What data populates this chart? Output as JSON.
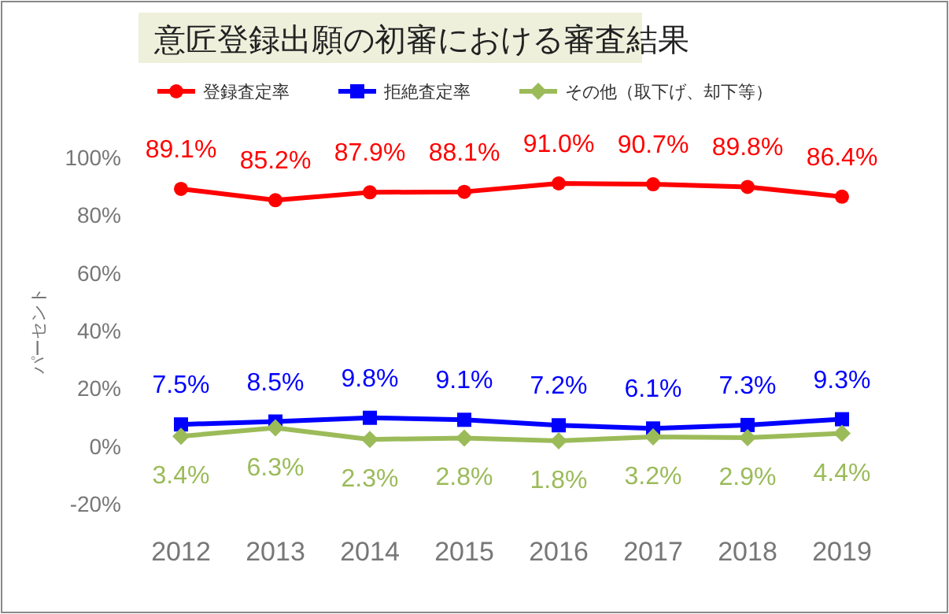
{
  "chart_data": {
    "type": "line",
    "title": "意匠登録出願の初審における審査結果",
    "ylabel": "パーセント",
    "categories": [
      "2012",
      "2013",
      "2014",
      "2015",
      "2016",
      "2017",
      "2018",
      "2019"
    ],
    "series": [
      {
        "name": "登録査定率",
        "color": "#ff0000",
        "marker": "circle",
        "values": [
          89.1,
          85.2,
          87.9,
          88.1,
          91.0,
          90.7,
          89.8,
          86.4
        ],
        "value_labels": [
          "89.1%",
          "85.2%",
          "87.9%",
          "88.1%",
          "91.0%",
          "90.7%",
          "89.8%",
          "86.4%"
        ]
      },
      {
        "name": "拒絶査定率",
        "color": "#0000ff",
        "marker": "square",
        "values": [
          7.5,
          8.5,
          9.8,
          9.1,
          7.2,
          6.1,
          7.3,
          9.3
        ],
        "value_labels": [
          "7.5%",
          "8.5%",
          "9.8%",
          "9.1%",
          "7.2%",
          "6.1%",
          "7.3%",
          "9.3%"
        ]
      },
      {
        "name": "その他（取下げ、却下等）",
        "color": "#9bbb59",
        "marker": "diamond",
        "values": [
          3.4,
          6.3,
          2.3,
          2.8,
          1.8,
          3.2,
          2.9,
          4.4
        ],
        "value_labels": [
          "3.4%",
          "6.3%",
          "2.3%",
          "2.8%",
          "1.8%",
          "3.2%",
          "2.9%",
          "4.4%"
        ]
      }
    ],
    "ylim": [
      -20,
      100
    ],
    "yticks": [
      {
        "value": -20,
        "label": "-20%"
      },
      {
        "value": 0,
        "label": "0%"
      },
      {
        "value": 20,
        "label": "20%"
      },
      {
        "value": 40,
        "label": "40%"
      },
      {
        "value": 60,
        "label": "60%"
      },
      {
        "value": 80,
        "label": "80%"
      },
      {
        "value": 100,
        "label": "100%"
      }
    ],
    "grid": false,
    "legend": "top"
  }
}
